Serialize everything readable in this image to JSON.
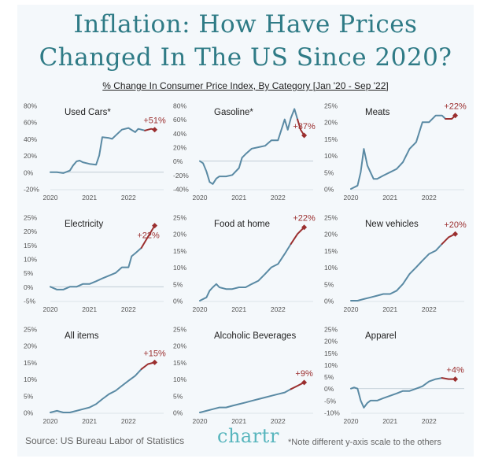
{
  "title_line1": "Inflation: How Have Prices",
  "title_line2": "Changed In The US Since 2020?",
  "subtitle": "% Change In Consumer Price Index, By Category [Jan '20 - Sep '22]",
  "source": "Source: US Bureau Labor of Statistics",
  "logo": "chartr",
  "note": "*Note different y-axis scale to the others",
  "colors": {
    "line": "#5a8aa4",
    "end_line": "#9b2f2f",
    "end_label": "#9b2f2f",
    "title": "#2f7b86",
    "logo": "#57b5bd"
  },
  "chart_data": [
    {
      "type": "line",
      "title": "Used Cars*",
      "end_label": "+51%",
      "xticks": [
        "2020",
        "2021",
        "2022"
      ],
      "xtick_values": [
        2020,
        2021,
        2022
      ],
      "ylim": [
        -20,
        80
      ],
      "yticks": [
        "80%",
        "60%",
        "40%",
        "20%",
        "0%",
        "-20%"
      ],
      "ytick_values": [
        80,
        60,
        40,
        20,
        0,
        -20
      ],
      "x": [
        2020.0,
        2020.17,
        2020.33,
        2020.5,
        2020.58,
        2020.67,
        2020.75,
        2020.83,
        2021.0,
        2021.17,
        2021.25,
        2021.33,
        2021.5,
        2021.58,
        2021.67,
        2021.83,
        2022.0,
        2022.17,
        2022.25,
        2022.42,
        2022.58,
        2022.67
      ],
      "y": [
        0,
        0,
        -1,
        2,
        8,
        13,
        14,
        12,
        10,
        9,
        20,
        42,
        41,
        40,
        44,
        51,
        53,
        48,
        52,
        50,
        52,
        51
      ]
    },
    {
      "type": "line",
      "title": "Gasoline*",
      "end_label": "+37%",
      "xticks": [
        "2020",
        "2021",
        "2022"
      ],
      "xtick_values": [
        2020,
        2021,
        2022
      ],
      "ylim": [
        -40,
        80
      ],
      "yticks": [
        "80%",
        "60%",
        "40%",
        "20%",
        "0%",
        "-20%",
        "-40%"
      ],
      "ytick_values": [
        80,
        60,
        40,
        20,
        0,
        -20,
        -40
      ],
      "x": [
        2020.0,
        2020.08,
        2020.17,
        2020.25,
        2020.33,
        2020.42,
        2020.5,
        2020.67,
        2020.83,
        2021.0,
        2021.08,
        2021.17,
        2021.33,
        2021.5,
        2021.67,
        2021.83,
        2022.0,
        2022.17,
        2022.25,
        2022.33,
        2022.42,
        2022.5,
        2022.58,
        2022.67
      ],
      "y": [
        0,
        -3,
        -15,
        -30,
        -33,
        -25,
        -22,
        -22,
        -20,
        -10,
        5,
        10,
        18,
        20,
        22,
        30,
        30,
        60,
        45,
        62,
        75,
        60,
        45,
        37
      ]
    },
    {
      "type": "line",
      "title": "Meats",
      "end_label": "+22%",
      "xticks": [
        "2020",
        "2021",
        "2022"
      ],
      "xtick_values": [
        2020,
        2021,
        2022
      ],
      "ylim": [
        0,
        25
      ],
      "yticks": [
        "25%",
        "20%",
        "15%",
        "10%",
        "5%",
        "0%"
      ],
      "ytick_values": [
        25,
        20,
        15,
        10,
        5,
        0
      ],
      "x": [
        2020.0,
        2020.17,
        2020.25,
        2020.33,
        2020.42,
        2020.5,
        2020.58,
        2020.67,
        2020.83,
        2021.0,
        2021.17,
        2021.33,
        2021.5,
        2021.67,
        2021.83,
        2022.0,
        2022.17,
        2022.33,
        2022.42,
        2022.58,
        2022.67
      ],
      "y": [
        0,
        1,
        5,
        12,
        7,
        5,
        3,
        3,
        4,
        5,
        6,
        8,
        12,
        14,
        20,
        20,
        22,
        22,
        21,
        21,
        22
      ]
    },
    {
      "type": "line",
      "title": "Electricity",
      "end_label": "+22%",
      "xticks": [
        "2020",
        "2021",
        "2022"
      ],
      "xtick_values": [
        2020,
        2021,
        2022
      ],
      "ylim": [
        -5,
        25
      ],
      "yticks": [
        "25%",
        "20%",
        "15%",
        "10%",
        "5%",
        "0%",
        "-5%"
      ],
      "ytick_values": [
        25,
        20,
        15,
        10,
        5,
        0,
        -5
      ],
      "x": [
        2020.0,
        2020.17,
        2020.33,
        2020.5,
        2020.67,
        2020.83,
        2021.0,
        2021.17,
        2021.33,
        2021.5,
        2021.67,
        2021.83,
        2022.0,
        2022.08,
        2022.17,
        2022.33,
        2022.5,
        2022.67
      ],
      "y": [
        0,
        -1,
        -1,
        0,
        0,
        1,
        1,
        2,
        3,
        4,
        5,
        7,
        7,
        11,
        12,
        14,
        18,
        22
      ]
    },
    {
      "type": "line",
      "title": "Food at home",
      "end_label": "+22%",
      "xticks": [
        "2020",
        "2021",
        "2022"
      ],
      "xtick_values": [
        2020,
        2021,
        2022
      ],
      "ylim": [
        0,
        25
      ],
      "yticks": [
        "25%",
        "20%",
        "15%",
        "10%",
        "5%",
        "0%"
      ],
      "ytick_values": [
        25,
        20,
        15,
        10,
        5,
        0
      ],
      "x": [
        2020.0,
        2020.17,
        2020.25,
        2020.33,
        2020.42,
        2020.5,
        2020.67,
        2020.83,
        2021.0,
        2021.17,
        2021.33,
        2021.5,
        2021.67,
        2021.83,
        2022.0,
        2022.17,
        2022.33,
        2022.5,
        2022.67
      ],
      "y": [
        0,
        1,
        3,
        4,
        5,
        4,
        3.5,
        3.5,
        4,
        4,
        5,
        6,
        8,
        10,
        11,
        14,
        17,
        20,
        22
      ]
    },
    {
      "type": "line",
      "title": "New vehicles",
      "end_label": "+20%",
      "xticks": [
        "2020",
        "2021",
        "2022"
      ],
      "xtick_values": [
        2020,
        2021,
        2022
      ],
      "ylim": [
        0,
        25
      ],
      "yticks": [
        "25%",
        "20%",
        "15%",
        "10%",
        "5%",
        "0%"
      ],
      "ytick_values": [
        25,
        20,
        15,
        10,
        5,
        0
      ],
      "x": [
        2020.0,
        2020.17,
        2020.33,
        2020.5,
        2020.67,
        2020.83,
        2021.0,
        2021.17,
        2021.33,
        2021.5,
        2021.67,
        2021.83,
        2022.0,
        2022.17,
        2022.33,
        2022.5,
        2022.67
      ],
      "y": [
        0,
        0,
        0.5,
        1,
        1.5,
        2,
        2,
        3,
        5,
        8,
        10,
        12,
        14,
        15,
        17,
        19,
        20
      ]
    },
    {
      "type": "line",
      "title": "All items",
      "end_label": "+15%",
      "xticks": [
        "2020",
        "2021",
        "2022"
      ],
      "xtick_values": [
        2020,
        2021,
        2022
      ],
      "ylim": [
        0,
        25
      ],
      "yticks": [
        "25%",
        "20%",
        "15%",
        "10%",
        "5%",
        "0%"
      ],
      "ytick_values": [
        25,
        20,
        15,
        10,
        5,
        0
      ],
      "x": [
        2020.0,
        2020.17,
        2020.33,
        2020.5,
        2020.67,
        2020.83,
        2021.0,
        2021.17,
        2021.33,
        2021.5,
        2021.67,
        2021.83,
        2022.0,
        2022.17,
        2022.33,
        2022.5,
        2022.67
      ],
      "y": [
        0,
        0.5,
        0,
        0,
        0.5,
        1,
        1.5,
        2.5,
        4,
        5.5,
        6.5,
        8,
        9.5,
        11,
        13,
        14.5,
        15
      ]
    },
    {
      "type": "line",
      "title": "Alcoholic Beverages",
      "end_label": "+9%",
      "xticks": [
        "2020",
        "2021",
        "2022"
      ],
      "xtick_values": [
        2020,
        2021,
        2022
      ],
      "ylim": [
        0,
        25
      ],
      "yticks": [
        "25%",
        "20%",
        "15%",
        "10%",
        "5%",
        "0%"
      ],
      "ytick_values": [
        25,
        20,
        15,
        10,
        5,
        0
      ],
      "x": [
        2020.0,
        2020.17,
        2020.33,
        2020.5,
        2020.67,
        2020.83,
        2021.0,
        2021.17,
        2021.33,
        2021.5,
        2021.67,
        2021.83,
        2022.0,
        2022.17,
        2022.33,
        2022.5,
        2022.67
      ],
      "y": [
        0,
        0.5,
        1,
        1.5,
        1.5,
        2,
        2.5,
        3,
        3.5,
        4,
        4.5,
        5,
        5.5,
        6,
        7,
        8,
        9
      ]
    },
    {
      "type": "line",
      "title": "Apparel",
      "end_label": "+4%",
      "xticks": [
        "2020",
        "2021",
        "2022"
      ],
      "xtick_values": [
        2020,
        2021,
        2022
      ],
      "ylim": [
        -10,
        25
      ],
      "yticks": [
        "25%",
        "20%",
        "15%",
        "10%",
        "5%",
        "0%",
        "-5%",
        "-10%"
      ],
      "ytick_values": [
        25,
        20,
        15,
        10,
        5,
        0,
        -5,
        -10
      ],
      "x": [
        2020.0,
        2020.08,
        2020.17,
        2020.25,
        2020.33,
        2020.42,
        2020.5,
        2020.67,
        2020.83,
        2021.0,
        2021.17,
        2021.33,
        2021.5,
        2021.67,
        2021.83,
        2022.0,
        2022.17,
        2022.33,
        2022.5,
        2022.67
      ],
      "y": [
        0,
        0.5,
        0,
        -5,
        -8,
        -6,
        -5,
        -5,
        -4,
        -3,
        -2,
        -1,
        -1,
        0,
        1,
        3,
        4,
        4.5,
        4,
        4
      ]
    }
  ]
}
